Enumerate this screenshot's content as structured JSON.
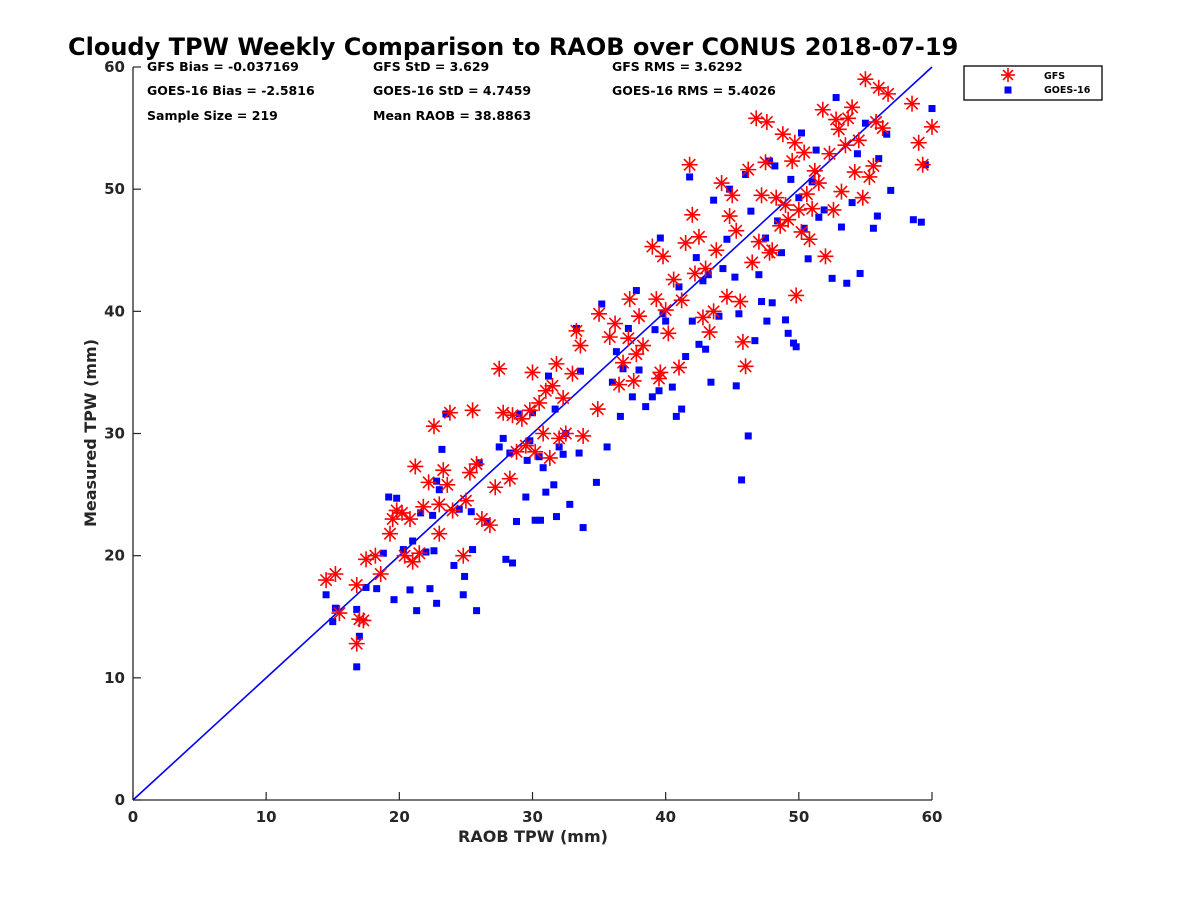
{
  "chart_data": {
    "type": "scatter",
    "title": "Cloudy TPW Weekly Comparison to RAOB over CONUS 2018-07-19",
    "xlabel": "RAOB TPW (mm)",
    "ylabel": "Measured TPW (mm)",
    "xlim": [
      0,
      60
    ],
    "ylim": [
      0,
      60
    ],
    "xticks": [
      "0",
      "10",
      "20",
      "30",
      "40",
      "50",
      "60"
    ],
    "yticks": [
      "0",
      "10",
      "20",
      "30",
      "40",
      "50",
      "60"
    ],
    "grid": false,
    "legend_position": "top-right outside",
    "reference_line": {
      "x": [
        0,
        60
      ],
      "y": [
        0,
        60
      ],
      "color": "#0000ff"
    },
    "stats": {
      "gfs_bias": "GFS Bias = -0.037169",
      "gfs_std": "GFS StD = 3.629",
      "gfs_rms": "GFS RMS = 3.6292",
      "goes_bias": "GOES-16 Bias = -2.5816",
      "goes_std": "GOES-16 StD = 4.7459",
      "goes_rms": "GOES-16 RMS = 5.4026",
      "sample_size": "Sample Size = 219",
      "mean_raob": "Mean RAOB = 38.8863"
    },
    "series": [
      {
        "name": "GFS",
        "marker": "asterisk",
        "color": "#ff0000",
        "points": [
          [
            14.5,
            18
          ],
          [
            15.2,
            18.5
          ],
          [
            15.5,
            15.3
          ],
          [
            16.8,
            17.6
          ],
          [
            17.0,
            14.8
          ],
          [
            17.3,
            14.7
          ],
          [
            16.8,
            12.8
          ],
          [
            17.5,
            19.7
          ],
          [
            18.2,
            20
          ],
          [
            18.6,
            18.5
          ],
          [
            19.3,
            21.8
          ],
          [
            19.5,
            23
          ],
          [
            19.8,
            23.7
          ],
          [
            20.2,
            23.5
          ],
          [
            20.4,
            20
          ],
          [
            20.8,
            23
          ],
          [
            21.2,
            27.3
          ],
          [
            21.0,
            19.5
          ],
          [
            21.5,
            20.2
          ],
          [
            21.8,
            24
          ],
          [
            22.2,
            26
          ],
          [
            22.6,
            30.6
          ],
          [
            23.0,
            21.8
          ],
          [
            23.0,
            24.2
          ],
          [
            23.3,
            27
          ],
          [
            23.6,
            25.8
          ],
          [
            23.8,
            31.7
          ],
          [
            24.0,
            23.7
          ],
          [
            24.8,
            20
          ],
          [
            25.0,
            24.5
          ],
          [
            25.3,
            26.8
          ],
          [
            25.5,
            31.9
          ],
          [
            25.8,
            27.5
          ],
          [
            26.2,
            23.0
          ],
          [
            26.8,
            22.5
          ],
          [
            27.2,
            25.6
          ],
          [
            27.5,
            35.3
          ],
          [
            27.8,
            31.7
          ],
          [
            28.3,
            26.3
          ],
          [
            28.5,
            31.5
          ],
          [
            28.8,
            28.5
          ],
          [
            29.2,
            31.2
          ],
          [
            29.5,
            29.0
          ],
          [
            29.8,
            31.9
          ],
          [
            30.0,
            35
          ],
          [
            30.2,
            28.5
          ],
          [
            30.5,
            32.5
          ],
          [
            30.8,
            30.0
          ],
          [
            31.0,
            33.5
          ],
          [
            31.3,
            28.0
          ],
          [
            31.5,
            33.9
          ],
          [
            31.8,
            35.7
          ],
          [
            32.0,
            29.6
          ],
          [
            32.3,
            32.9
          ],
          [
            32.5,
            30.0
          ],
          [
            33.0,
            34.9
          ],
          [
            33.3,
            38.4
          ],
          [
            33.6,
            37.2
          ],
          [
            33.8,
            29.8
          ],
          [
            34.9,
            32
          ],
          [
            35.0,
            39.8
          ],
          [
            35.8,
            37.9
          ],
          [
            36.2,
            39
          ],
          [
            36.5,
            34
          ],
          [
            36.8,
            35.8
          ],
          [
            37.2,
            37.8
          ],
          [
            37.3,
            41
          ],
          [
            37.6,
            34.3
          ],
          [
            37.8,
            36.5
          ],
          [
            38.0,
            39.6
          ],
          [
            38.3,
            37.2
          ],
          [
            39.0,
            45.3
          ],
          [
            39.3,
            41.0
          ],
          [
            39.5,
            34.5
          ],
          [
            39.6,
            35
          ],
          [
            39.8,
            44.5
          ],
          [
            40.0,
            40.1
          ],
          [
            40.2,
            38.2
          ],
          [
            40.6,
            42.6
          ],
          [
            41.0,
            35.4
          ],
          [
            41.2,
            40.9
          ],
          [
            41.5,
            45.6
          ],
          [
            41.8,
            52
          ],
          [
            42.0,
            47.9
          ],
          [
            42.2,
            43.1
          ],
          [
            42.5,
            46.1
          ],
          [
            42.8,
            39.5
          ],
          [
            43.0,
            43.5
          ],
          [
            43.3,
            38.3
          ],
          [
            43.6,
            40.0
          ],
          [
            43.8,
            45.0
          ],
          [
            44.2,
            50.5
          ],
          [
            44.6,
            41.2
          ],
          [
            44.8,
            47.8
          ],
          [
            45.0,
            49.5
          ],
          [
            45.3,
            46.6
          ],
          [
            45.6,
            40.8
          ],
          [
            45.8,
            37.5
          ],
          [
            46.0,
            35.5
          ],
          [
            46.2,
            51.6
          ],
          [
            46.5,
            44.0
          ],
          [
            46.8,
            55.8
          ],
          [
            47.0,
            45.7
          ],
          [
            47.2,
            49.5
          ],
          [
            47.5,
            52.2
          ],
          [
            47.6,
            55.5
          ],
          [
            47.8,
            44.8
          ],
          [
            48.0,
            45.0
          ],
          [
            48.3,
            49.3
          ],
          [
            48.6,
            47.0
          ],
          [
            48.8,
            54.5
          ],
          [
            49.0,
            48.7
          ],
          [
            49.2,
            47.5
          ],
          [
            49.5,
            52.3
          ],
          [
            49.7,
            53.8
          ],
          [
            49.8,
            41.3
          ],
          [
            50.0,
            48.3
          ],
          [
            50.2,
            46.5
          ],
          [
            50.4,
            53
          ],
          [
            50.6,
            49.6
          ],
          [
            50.8,
            45.9
          ],
          [
            51.0,
            48.4
          ],
          [
            51.2,
            51.5
          ],
          [
            51.5,
            50.5
          ],
          [
            51.8,
            56.5
          ],
          [
            52.0,
            44.5
          ],
          [
            52.3,
            52.9
          ],
          [
            52.6,
            48.3
          ],
          [
            52.8,
            55.7
          ],
          [
            53.0,
            54.9
          ],
          [
            53.2,
            49.8
          ],
          [
            53.5,
            53.6
          ],
          [
            53.7,
            55.8
          ],
          [
            54.0,
            56.7
          ],
          [
            54.2,
            51.4
          ],
          [
            54.5,
            54.0
          ],
          [
            54.8,
            49.3
          ],
          [
            55.0,
            59
          ],
          [
            55.3,
            51.0
          ],
          [
            55.6,
            51.9
          ],
          [
            55.8,
            55.5
          ],
          [
            56.0,
            58.3
          ],
          [
            56.3,
            55
          ],
          [
            56.7,
            57.8
          ],
          [
            58.5,
            57
          ],
          [
            59.0,
            53.8
          ],
          [
            59.3,
            52
          ],
          [
            60.0,
            55.1
          ]
        ]
      },
      {
        "name": "GOES-16",
        "marker": "square",
        "color": "#0000ff",
        "points": [
          [
            14.5,
            16.8
          ],
          [
            15.0,
            14.6
          ],
          [
            15.2,
            15.7
          ],
          [
            16.8,
            10.9
          ],
          [
            16.8,
            15.6
          ],
          [
            17.0,
            13.4
          ],
          [
            17.5,
            17.4
          ],
          [
            18.3,
            17.3
          ],
          [
            18.8,
            20.2
          ],
          [
            19.2,
            24.8
          ],
          [
            19.6,
            16.4
          ],
          [
            19.8,
            24.7
          ],
          [
            20.3,
            20.5
          ],
          [
            20.8,
            17.2
          ],
          [
            21.0,
            21.2
          ],
          [
            21.3,
            15.5
          ],
          [
            21.6,
            23.5
          ],
          [
            22.0,
            20.3
          ],
          [
            22.3,
            17.3
          ],
          [
            22.5,
            23.3
          ],
          [
            22.6,
            20.4
          ],
          [
            22.8,
            26.1
          ],
          [
            22.8,
            16.1
          ],
          [
            23.0,
            25.4
          ],
          [
            23.2,
            28.7
          ],
          [
            23.5,
            31.6
          ],
          [
            24.1,
            19.2
          ],
          [
            24.5,
            23.8
          ],
          [
            24.8,
            16.8
          ],
          [
            24.9,
            18.3
          ],
          [
            25.4,
            23.6
          ],
          [
            25.5,
            20.5
          ],
          [
            25.8,
            15.5
          ],
          [
            26.0,
            27.6
          ],
          [
            26.6,
            22.8
          ],
          [
            27.5,
            28.9
          ],
          [
            27.8,
            29.6
          ],
          [
            28.0,
            19.7
          ],
          [
            28.3,
            28.4
          ],
          [
            28.5,
            19.4
          ],
          [
            28.8,
            22.8
          ],
          [
            29.0,
            31.6
          ],
          [
            29.5,
            24.8
          ],
          [
            29.6,
            27.8
          ],
          [
            29.8,
            29.4
          ],
          [
            30.0,
            31.7
          ],
          [
            30.2,
            22.9
          ],
          [
            30.5,
            28.1
          ],
          [
            30.6,
            22.9
          ],
          [
            30.8,
            27.2
          ],
          [
            31.0,
            25.2
          ],
          [
            31.2,
            34.7
          ],
          [
            31.6,
            25.8
          ],
          [
            31.7,
            32.0
          ],
          [
            31.8,
            23.2
          ],
          [
            32.0,
            28.9
          ],
          [
            32.3,
            28.3
          ],
          [
            32.5,
            30.0
          ],
          [
            32.8,
            24.2
          ],
          [
            33.3,
            38.6
          ],
          [
            33.5,
            28.4
          ],
          [
            33.6,
            35.1
          ],
          [
            33.8,
            22.3
          ],
          [
            34.8,
            26.0
          ],
          [
            35.2,
            40.6
          ],
          [
            35.6,
            28.9
          ],
          [
            36.0,
            34.2
          ],
          [
            36.3,
            36.7
          ],
          [
            36.6,
            31.4
          ],
          [
            36.8,
            35.3
          ],
          [
            37.2,
            38.6
          ],
          [
            37.5,
            33.0
          ],
          [
            37.8,
            41.7
          ],
          [
            38.0,
            35.2
          ],
          [
            38.5,
            32.2
          ],
          [
            39.0,
            33.0
          ],
          [
            39.2,
            38.5
          ],
          [
            39.5,
            33.5
          ],
          [
            39.6,
            46.0
          ],
          [
            39.8,
            39.8
          ],
          [
            40.0,
            39.2
          ],
          [
            40.5,
            33.8
          ],
          [
            40.8,
            31.4
          ],
          [
            41.0,
            42.0
          ],
          [
            41.2,
            32.0
          ],
          [
            41.5,
            36.3
          ],
          [
            41.8,
            51.0
          ],
          [
            42.0,
            39.2
          ],
          [
            42.3,
            44.4
          ],
          [
            42.5,
            37.3
          ],
          [
            42.8,
            42.5
          ],
          [
            43.0,
            36.9
          ],
          [
            43.2,
            43.0
          ],
          [
            43.4,
            34.2
          ],
          [
            43.6,
            49.1
          ],
          [
            44.0,
            39.6
          ],
          [
            44.3,
            43.5
          ],
          [
            44.6,
            45.9
          ],
          [
            44.8,
            50.0
          ],
          [
            45.2,
            42.8
          ],
          [
            45.3,
            33.9
          ],
          [
            45.5,
            39.8
          ],
          [
            45.7,
            26.2
          ],
          [
            46.0,
            51.2
          ],
          [
            46.2,
            29.8
          ],
          [
            46.4,
            48.2
          ],
          [
            46.7,
            37.6
          ],
          [
            47.0,
            43.0
          ],
          [
            47.2,
            40.8
          ],
          [
            47.5,
            46.0
          ],
          [
            47.6,
            39.2
          ],
          [
            47.8,
            52.3
          ],
          [
            48.0,
            40.7
          ],
          [
            48.2,
            51.9
          ],
          [
            48.4,
            47.4
          ],
          [
            48.7,
            44.8
          ],
          [
            49.0,
            39.3
          ],
          [
            49.2,
            38.2
          ],
          [
            49.4,
            50.8
          ],
          [
            49.6,
            37.4
          ],
          [
            49.8,
            37.1
          ],
          [
            50.0,
            49.3
          ],
          [
            50.2,
            54.6
          ],
          [
            50.4,
            46.8
          ],
          [
            50.7,
            44.3
          ],
          [
            51.0,
            50.6
          ],
          [
            51.3,
            53.2
          ],
          [
            51.5,
            47.7
          ],
          [
            51.9,
            48.3
          ],
          [
            52.5,
            42.7
          ],
          [
            52.8,
            57.5
          ],
          [
            53.2,
            46.9
          ],
          [
            53.6,
            42.3
          ],
          [
            54.0,
            48.9
          ],
          [
            54.4,
            52.9
          ],
          [
            54.6,
            43.1
          ],
          [
            55.0,
            55.4
          ],
          [
            55.6,
            46.8
          ],
          [
            55.9,
            47.8
          ],
          [
            56.0,
            52.5
          ],
          [
            56.6,
            54.5
          ],
          [
            56.9,
            49.9
          ],
          [
            58.6,
            47.5
          ],
          [
            59.2,
            47.3
          ],
          [
            59.5,
            52.0
          ],
          [
            60.0,
            56.6
          ]
        ]
      }
    ]
  }
}
